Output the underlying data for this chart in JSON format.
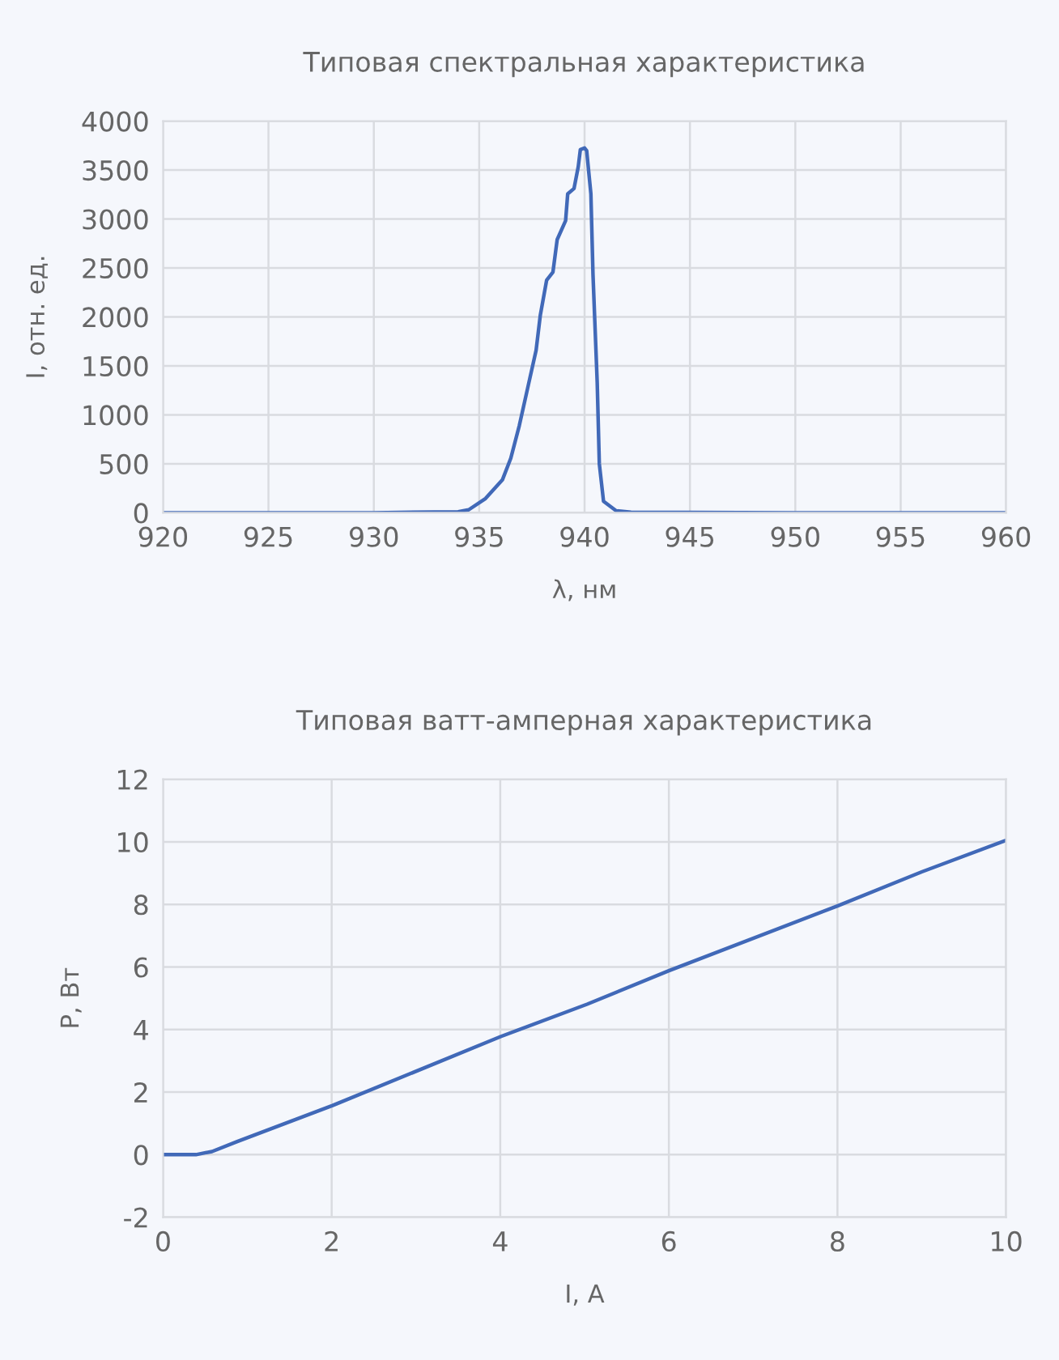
{
  "chart_data": [
    {
      "type": "line",
      "title": "Типовая спектральная характеристика",
      "xlabel": "λ, нм",
      "ylabel": "I, отн. ед.",
      "series": [
        {
          "color": "#4169b8",
          "x": [
            920,
            930,
            934,
            934.5,
            935.3,
            936.1,
            936.5,
            936.9,
            937.3,
            937.7,
            937.9,
            938.2,
            938.5,
            938.7,
            939.1,
            939.2,
            939.5,
            939.7,
            939.8,
            940.0,
            940.1,
            940.3,
            940.4,
            940.6,
            940.7,
            940.9,
            941.5,
            942.2,
            950,
            960
          ],
          "values": [
            0,
            0,
            10,
            30,
            145,
            335,
            557,
            887,
            1273,
            1658,
            2017,
            2375,
            2458,
            2789,
            2982,
            3256,
            3311,
            3533,
            3708,
            3725,
            3697,
            3256,
            2430,
            1328,
            500,
            116,
            20,
            5,
            0,
            0
          ]
        }
      ],
      "xlim": [
        920,
        960
      ],
      "xticks": [
        920,
        925,
        930,
        935,
        940,
        945,
        950,
        955,
        960
      ],
      "ylim": [
        0,
        4000
      ],
      "yticks": [
        0,
        500,
        1000,
        1500,
        2000,
        2500,
        3000,
        3500,
        4000
      ],
      "grid": true,
      "legend": false
    },
    {
      "type": "line",
      "title": "Типовая ватт-амперная характеристика",
      "xlabel": "I, А",
      "ylabel": "P, Вт",
      "series": [
        {
          "color": "#4169b8",
          "x": [
            0,
            0.39,
            0.58,
            0.88,
            2.01,
            4.01,
            5.03,
            6.0,
            8.0,
            9.0,
            10.0
          ],
          "values": [
            0,
            0,
            0.1,
            0.42,
            1.57,
            3.78,
            4.81,
            5.88,
            7.95,
            9.04,
            10.05
          ]
        }
      ],
      "xlim": [
        0,
        10
      ],
      "xticks": [
        0,
        2,
        4,
        6,
        8,
        10
      ],
      "ylim": [
        -2,
        12
      ],
      "yticks": [
        {
          "value": -2,
          "label": "-2"
        },
        0,
        2,
        4,
        6,
        8,
        10,
        12
      ],
      "grid": true,
      "legend": false
    }
  ]
}
